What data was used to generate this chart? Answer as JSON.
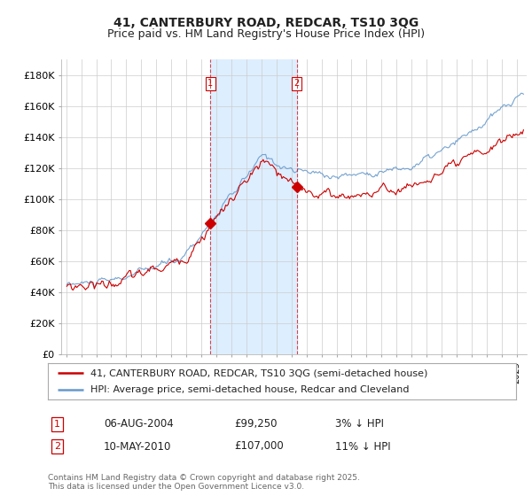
{
  "title": "41, CANTERBURY ROAD, REDCAR, TS10 3QG",
  "subtitle": "Price paid vs. HM Land Registry's House Price Index (HPI)",
  "ylim": [
    0,
    190000
  ],
  "yticks": [
    0,
    20000,
    40000,
    60000,
    80000,
    100000,
    120000,
    140000,
    160000,
    180000
  ],
  "ytick_labels": [
    "£0",
    "£20K",
    "£40K",
    "£60K",
    "£80K",
    "£100K",
    "£120K",
    "£140K",
    "£160K",
    "£180K"
  ],
  "price_paid_color": "#cc0000",
  "hpi_color": "#6699cc",
  "vline_color": "#cc0000",
  "background_color": "#ffffff",
  "plot_bg_color": "#ffffff",
  "grid_color": "#cccccc",
  "shade_color": "#ddeeff",
  "annotation1_year": 2004,
  "annotation1_month": 8,
  "annotation1_day": 6,
  "annotation1_price": 99250,
  "annotation2_year": 2010,
  "annotation2_month": 5,
  "annotation2_day": 10,
  "annotation2_price": 107000,
  "legend_line1": "41, CANTERBURY ROAD, REDCAR, TS10 3QG (semi-detached house)",
  "legend_line2": "HPI: Average price, semi-detached house, Redcar and Cleveland",
  "footer": "Contains HM Land Registry data © Crown copyright and database right 2025.\nThis data is licensed under the Open Government Licence v3.0.",
  "table_rows": [
    [
      "1",
      "06-AUG-2004",
      "£99,250",
      "3% ↓ HPI"
    ],
    [
      "2",
      "10-MAY-2010",
      "£107,000",
      "11% ↓ HPI"
    ]
  ],
  "title_fontsize": 10,
  "subtitle_fontsize": 9,
  "tick_fontsize": 8,
  "legend_fontsize": 8
}
